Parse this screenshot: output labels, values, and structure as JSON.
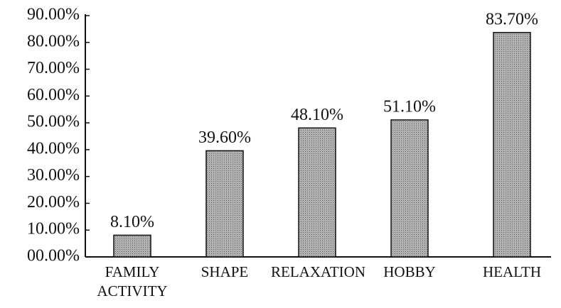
{
  "chart_data": {
    "type": "bar",
    "categories": [
      "FAMILY ACTIVITY",
      "SHAPE",
      "RELAXATION",
      "HOBBY",
      "HEALTH"
    ],
    "values": [
      8.1,
      39.6,
      48.1,
      51.1,
      83.7
    ],
    "value_labels": [
      "8.10%",
      "39.60%",
      "48.10%",
      "51.10%",
      "83.70%"
    ],
    "color": "#9a9a9a",
    "ylim": [
      0,
      90
    ],
    "yticks": [
      {
        "value": 0,
        "label": "00.00%"
      },
      {
        "value": 10,
        "label": "10.00%"
      },
      {
        "value": 20,
        "label": "20.00%"
      },
      {
        "value": 30,
        "label": "30.00%"
      },
      {
        "value": 40,
        "label": "40.00%"
      },
      {
        "value": 50,
        "label": "50.00%"
      },
      {
        "value": 60,
        "label": "60.00%"
      },
      {
        "value": 70,
        "label": "70.00%"
      },
      {
        "value": 80,
        "label": "80.00%"
      },
      {
        "value": 90,
        "label": "90.00%"
      }
    ],
    "grid": false
  }
}
